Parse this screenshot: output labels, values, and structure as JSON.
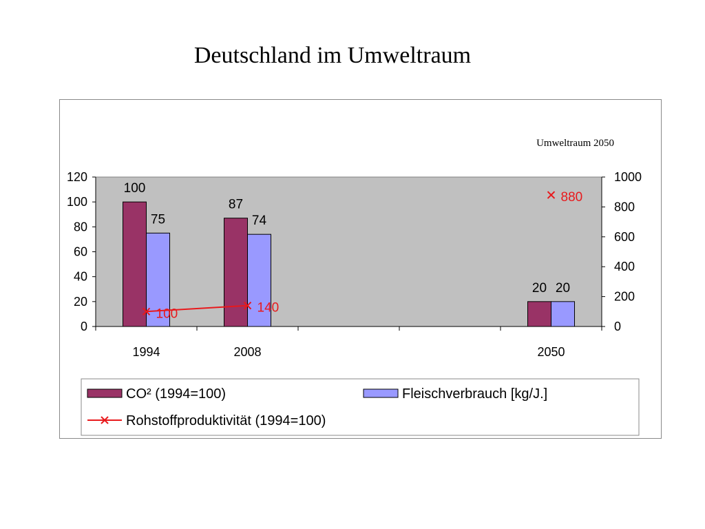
{
  "slide": {
    "title": "Deutschland im Umweltraum"
  },
  "chart_data": {
    "type": "bar",
    "title": "",
    "annotation": "Umweltraum 2050",
    "categories": [
      "1994",
      "2008",
      "",
      "",
      "2050"
    ],
    "ylim": [
      0,
      120
    ],
    "y_ticks": [
      "0",
      "20",
      "40",
      "60",
      "80",
      "100",
      "120"
    ],
    "y2lim": [
      0,
      1000
    ],
    "y2_ticks": [
      "0",
      "200",
      "400",
      "600",
      "800",
      "1000"
    ],
    "series": [
      {
        "name": "CO² (1994=100)",
        "type": "bar",
        "axis": "left",
        "color": "#993366",
        "values": [
          100,
          87,
          null,
          null,
          20
        ],
        "labels": [
          "100",
          "87",
          "",
          "",
          "20"
        ]
      },
      {
        "name": "Fleischverbrauch [kg/J.]",
        "type": "bar",
        "axis": "left",
        "color": "#9999ff",
        "values": [
          75,
          74,
          null,
          null,
          20
        ],
        "labels": [
          "75",
          "74",
          "",
          "",
          "20"
        ]
      },
      {
        "name": "Rohstoffproduktivität (1994=100)",
        "type": "line",
        "axis": "right",
        "color": "#e8191c",
        "values": [
          100,
          140,
          null,
          null,
          880
        ],
        "labels": [
          "100",
          "140",
          "",
          "",
          "880"
        ]
      }
    ],
    "grid": false,
    "plot_background": "#c0c0c0",
    "legend": "bottom"
  }
}
